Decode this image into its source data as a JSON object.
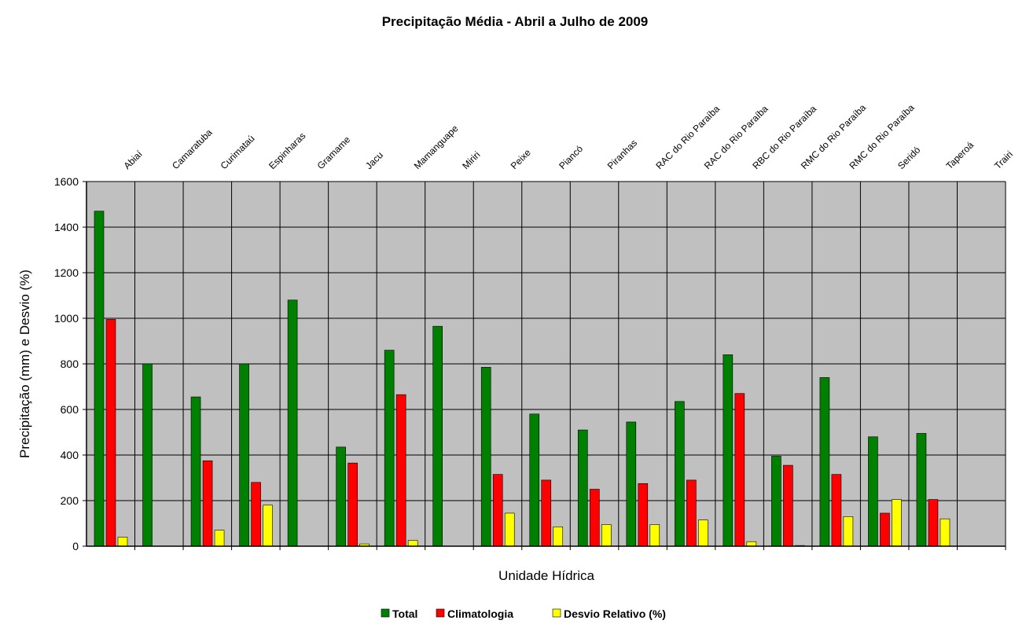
{
  "chart_data": {
    "type": "bar",
    "title": "Precipitação Média - Abril a Julho de 2009",
    "xlabel": "Unidade Hídrica",
    "ylabel": "Precipitação (mm) e Desvio (%)",
    "ylim": [
      0,
      1600
    ],
    "yticks": [
      0,
      200,
      400,
      600,
      800,
      1000,
      1200,
      1400,
      1600
    ],
    "grid": true,
    "legend": "bottom",
    "categories": [
      "Abiaí",
      "Camaratuba",
      "Curimataú",
      "Espinharas",
      "Gramame",
      "Jacu",
      "Mamanguape",
      "Miriri",
      "Peixe",
      "Piancó",
      "Piranhas",
      "RAC do Rio Paraíba",
      "RAC do Rio Paraíba",
      "RBC do Rio Paraíba",
      "RMC do Rio Paraíba",
      "RMC do Rio Paraíba",
      "Seridó",
      "Taperoá",
      "Trairi"
    ],
    "series": [
      {
        "name": "Total",
        "color": "#008000",
        "values": [
          1470,
          800,
          655,
          800,
          1080,
          435,
          860,
          965,
          785,
          580,
          510,
          545,
          635,
          840,
          395,
          740,
          480,
          495,
          null
        ]
      },
      {
        "name": "Climatologia",
        "color": "#ff0000",
        "values": [
          995,
          null,
          375,
          280,
          null,
          365,
          665,
          null,
          315,
          290,
          250,
          275,
          290,
          670,
          355,
          315,
          145,
          205,
          null
        ]
      },
      {
        "name": "Desvio Relativo (%)",
        "color": "#ffff00",
        "values": [
          40,
          null,
          70,
          180,
          null,
          10,
          25,
          null,
          145,
          85,
          95,
          95,
          115,
          20,
          3,
          130,
          205,
          120,
          null
        ]
      }
    ]
  }
}
